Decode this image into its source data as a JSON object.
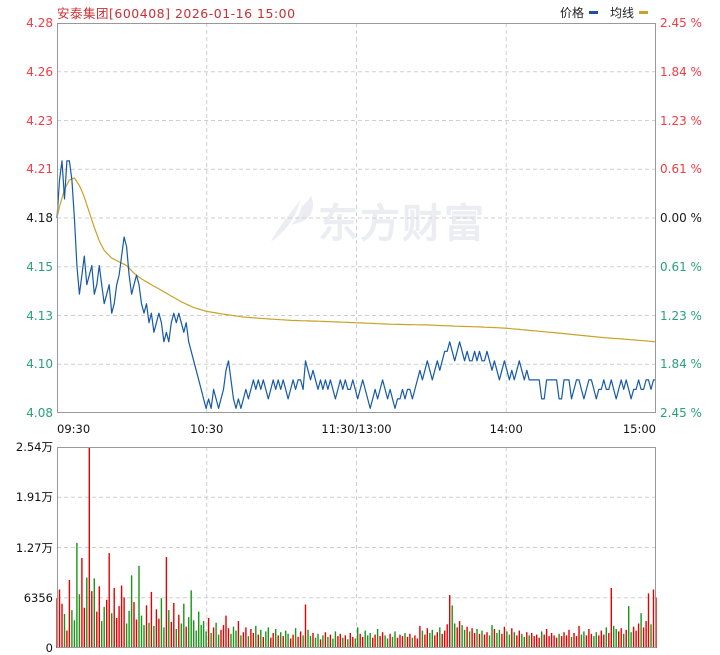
{
  "header": {
    "title": "安泰集团[600408] 2026-01-16 15:00",
    "title_color": "#cb2f33",
    "legend": [
      {
        "label": "价格",
        "color": "#1b4ea6"
      },
      {
        "label": "均线",
        "color": "#c9a227"
      }
    ]
  },
  "watermark": {
    "text": "东方财富"
  },
  "colors": {
    "up_text": "#f23b43",
    "down_text": "#2aa077",
    "flat_text": "#1a1a1a",
    "grid": "#cfcfcf",
    "panel_border": "#999999",
    "price_line": "#1659a8",
    "ma_line": "#c9a227",
    "volume_up": "#e80000",
    "volume_down": "#189618",
    "watermark": "#ebedf3"
  },
  "axes": {
    "price_left": [
      {
        "text": "4.28",
        "color": "#f23b43"
      },
      {
        "text": "4.26",
        "color": "#f23b43"
      },
      {
        "text": "4.23",
        "color": "#f23b43"
      },
      {
        "text": "4.21",
        "color": "#f23b43"
      },
      {
        "text": "4.18",
        "color": "#1a1a1a"
      },
      {
        "text": "4.15",
        "color": "#2aa077"
      },
      {
        "text": "4.13",
        "color": "#2aa077"
      },
      {
        "text": "4.10",
        "color": "#2aa077"
      },
      {
        "text": "4.08",
        "color": "#2aa077"
      }
    ],
    "price_right": [
      {
        "text": "2.45 %",
        "color": "#f23b43"
      },
      {
        "text": "1.84 %",
        "color": "#f23b43"
      },
      {
        "text": "1.23 %",
        "color": "#f23b43"
      },
      {
        "text": "0.61 %",
        "color": "#f23b43"
      },
      {
        "text": "0.00 %",
        "color": "#1a1a1a"
      },
      {
        "text": "0.61 %",
        "color": "#2aa077"
      },
      {
        "text": "1.23 %",
        "color": "#2aa077"
      },
      {
        "text": "1.84 %",
        "color": "#2aa077"
      },
      {
        "text": "2.45 %",
        "color": "#2aa077"
      }
    ],
    "volume_left": [
      "2.54万",
      "1.91万",
      "1.27万",
      "6356",
      "0"
    ],
    "time": [
      "09:30",
      "10:30",
      "11:30/13:00",
      "14:00",
      "15:00"
    ]
  },
  "chart_data": [
    {
      "type": "line",
      "name": "价格",
      "color": "#1659a8",
      "prev_close": 4.18,
      "percent_range": 2.45,
      "y_min": 4.0776,
      "y_max": 4.2824,
      "x_labels": [
        "09:30",
        "10:30",
        "11:30/13:00",
        "14:00",
        "15:00"
      ],
      "minutes": 242,
      "values": [
        4.18,
        4.2,
        4.21,
        4.19,
        4.21,
        4.21,
        4.2,
        4.18,
        4.155,
        4.14,
        4.15,
        4.16,
        4.145,
        4.15,
        4.155,
        4.14,
        4.145,
        4.155,
        4.145,
        4.135,
        4.14,
        4.145,
        4.13,
        4.135,
        4.145,
        4.15,
        4.16,
        4.17,
        4.165,
        4.15,
        4.14,
        4.145,
        4.15,
        4.145,
        4.135,
        4.13,
        4.135,
        4.125,
        4.13,
        4.12,
        4.125,
        4.13,
        4.125,
        4.115,
        4.12,
        4.115,
        4.125,
        4.13,
        4.125,
        4.13,
        4.125,
        4.12,
        4.125,
        4.115,
        4.11,
        4.105,
        4.1,
        4.095,
        4.09,
        4.085,
        4.08,
        4.085,
        4.08,
        4.09,
        4.085,
        4.08,
        4.085,
        4.09,
        4.1,
        4.105,
        4.095,
        4.085,
        4.08,
        4.085,
        4.08,
        4.085,
        4.09,
        4.085,
        4.09,
        4.095,
        4.09,
        4.095,
        4.09,
        4.095,
        4.09,
        4.085,
        4.09,
        4.095,
        4.09,
        4.095,
        4.09,
        4.095,
        4.09,
        4.085,
        4.09,
        4.095,
        4.09,
        4.095,
        4.095,
        4.09,
        4.105,
        4.1,
        4.095,
        4.1,
        4.095,
        4.09,
        4.095,
        4.09,
        4.095,
        4.09,
        4.095,
        4.09,
        4.085,
        4.09,
        4.095,
        4.09,
        4.095,
        4.09,
        4.09,
        4.095,
        4.09,
        4.085,
        4.09,
        4.095,
        4.09,
        4.085,
        4.08,
        4.085,
        4.09,
        4.085,
        4.09,
        4.095,
        4.09,
        4.085,
        4.09,
        4.085,
        4.08,
        4.085,
        4.085,
        4.09,
        4.085,
        4.09,
        4.09,
        4.085,
        4.09,
        4.095,
        4.1,
        4.095,
        4.1,
        4.105,
        4.1,
        4.095,
        4.1,
        4.105,
        4.1,
        4.105,
        4.11,
        4.11,
        4.115,
        4.11,
        4.105,
        4.11,
        4.115,
        4.11,
        4.105,
        4.11,
        4.105,
        4.105,
        4.11,
        4.105,
        4.11,
        4.105,
        4.105,
        4.11,
        4.105,
        4.1,
        4.105,
        4.1,
        4.095,
        4.1,
        4.105,
        4.1,
        4.095,
        4.1,
        4.095,
        4.1,
        4.105,
        4.1,
        4.095,
        4.1,
        4.095,
        4.095,
        4.095,
        4.095,
        4.095,
        4.085,
        4.085,
        4.095,
        4.095,
        4.095,
        4.095,
        4.095,
        4.085,
        4.085,
        4.095,
        4.095,
        4.095,
        4.085,
        4.09,
        4.095,
        4.095,
        4.09,
        4.085,
        4.09,
        4.095,
        4.095,
        4.09,
        4.085,
        4.09,
        4.09,
        4.095,
        4.09,
        4.09,
        4.095,
        4.09,
        4.085,
        4.09,
        4.095,
        4.09,
        4.095,
        4.09,
        4.085,
        4.09,
        4.09,
        4.095,
        4.09,
        4.09,
        4.095,
        4.095,
        4.09,
        4.095,
        4.095
      ]
    },
    {
      "type": "line",
      "name": "均线",
      "color": "#c9a227",
      "anchor_points": [
        [
          0,
          4.18
        ],
        [
          1,
          4.186
        ],
        [
          3,
          4.195
        ],
        [
          5,
          4.2
        ],
        [
          7,
          4.201
        ],
        [
          9,
          4.197
        ],
        [
          11,
          4.191
        ],
        [
          13,
          4.183
        ],
        [
          15,
          4.175
        ],
        [
          17,
          4.168
        ],
        [
          19,
          4.163
        ],
        [
          22,
          4.159
        ],
        [
          25,
          4.157
        ],
        [
          28,
          4.155
        ],
        [
          31,
          4.151
        ],
        [
          34,
          4.148
        ],
        [
          38,
          4.145
        ],
        [
          42,
          4.142
        ],
        [
          46,
          4.139
        ],
        [
          50,
          4.136
        ],
        [
          55,
          4.133
        ],
        [
          60,
          4.131
        ],
        [
          67,
          4.1295
        ],
        [
          75,
          4.128
        ],
        [
          85,
          4.127
        ],
        [
          95,
          4.1262
        ],
        [
          105,
          4.1258
        ],
        [
          120,
          4.125
        ],
        [
          135,
          4.1242
        ],
        [
          150,
          4.1238
        ],
        [
          160,
          4.1232
        ],
        [
          170,
          4.1228
        ],
        [
          180,
          4.1222
        ],
        [
          190,
          4.121
        ],
        [
          200,
          4.1198
        ],
        [
          210,
          4.1185
        ],
        [
          220,
          4.1172
        ],
        [
          230,
          4.1162
        ],
        [
          241,
          4.115
        ]
      ]
    },
    {
      "type": "bar",
      "name": "成交量",
      "up_color": "#e80000",
      "down_color": "#189618",
      "y_axis_labels": [
        "2.54万",
        "1.91万",
        "1.27万",
        "6356",
        "0"
      ],
      "y_max": 25424,
      "values": [
        6300,
        7400,
        5600,
        4300,
        2200,
        8600,
        4800,
        3500,
        13300,
        6800,
        11400,
        5100,
        8900,
        25400,
        7200,
        8800,
        4600,
        7800,
        3400,
        5200,
        6100,
        12000,
        4400,
        7600,
        3800,
        5300,
        7900,
        6400,
        3100,
        4700,
        9200,
        5800,
        3600,
        10400,
        4100,
        2900,
        5400,
        3200,
        7100,
        2800,
        4900,
        3700,
        6300,
        2600,
        11500,
        4800,
        3300,
        5700,
        2400,
        4200,
        3100,
        5600,
        2700,
        3900,
        7300,
        3500,
        2200,
        4600,
        2900,
        3400,
        2100,
        3800,
        1900,
        2600,
        3200,
        1700,
        2300,
        2900,
        4100,
        2500,
        1800,
        2700,
        2200,
        3400,
        1600,
        2000,
        2600,
        1500,
        2400,
        1900,
        2800,
        1700,
        2300,
        1400,
        2100,
        2600,
        1300,
        1900,
        2400,
        1600,
        2000,
        1500,
        2200,
        1800,
        1200,
        1700,
        2500,
        1400,
        2100,
        1600,
        5500,
        2300,
        1500,
        1900,
        1300,
        1800,
        1100,
        1600,
        2000,
        1400,
        1700,
        1200,
        2100,
        1500,
        1800,
        1300,
        1600,
        1100,
        1900,
        1400,
        1200,
        2600,
        1800,
        1400,
        2200,
        1600,
        1900,
        1300,
        1700,
        2400,
        1500,
        2000,
        1600,
        1200,
        1800,
        1400,
        2100,
        1300,
        1700,
        1500,
        1900,
        1400,
        1800,
        1300,
        1600,
        1200,
        2800,
        2200,
        1700,
        2500,
        1900,
        2300,
        1600,
        2000,
        2600,
        1800,
        2200,
        3000,
        6700,
        5400,
        3100,
        2600,
        3400,
        2900,
        2300,
        2700,
        2100,
        2500,
        1900,
        2400,
        1800,
        2200,
        1700,
        2000,
        1600,
        2900,
        2400,
        1900,
        2300,
        1800,
        2700,
        2100,
        1700,
        2500,
        2000,
        1600,
        2200,
        1800,
        1400,
        2000,
        1600,
        1900,
        1500,
        1700,
        1300,
        2100,
        1700,
        2400,
        1500,
        1900,
        1600,
        1300,
        1800,
        1500,
        2000,
        1600,
        2300,
        1400,
        1900,
        1500,
        2800,
        1700,
        2100,
        1600,
        2400,
        1800,
        1500,
        2000,
        1600,
        2200,
        1700,
        2600,
        1900,
        7600,
        2800,
        2400,
        2100,
        2500,
        1800,
        2300,
        5300,
        2000,
        2700,
        2200,
        3100,
        4400,
        2600,
        3400,
        6900,
        3000,
        7400,
        6400
      ]
    }
  ]
}
